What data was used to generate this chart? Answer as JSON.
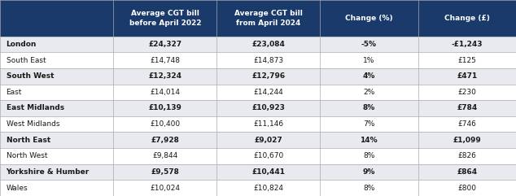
{
  "header_bg": "#1a3a6b",
  "header_text_color": "#ffffff",
  "col_headers": [
    "Average CGT bill\nbefore April 2022",
    "Average CGT bill\nfrom April 2024",
    "Change (%)",
    "Change (£)"
  ],
  "regions": [
    "London",
    "South East",
    "South West",
    "East",
    "East Midlands",
    "West Midlands",
    "North East",
    "North West",
    "Yorkshire & Humber",
    "Wales"
  ],
  "col1": [
    "£24,327",
    "£14,748",
    "£12,324",
    "£14,014",
    "£10,139",
    "£10,400",
    "£7,928",
    "£9,844",
    "£9,578",
    "£10,024"
  ],
  "col2": [
    "£23,084",
    "£14,873",
    "£12,796",
    "£14,244",
    "£10,923",
    "£11,146",
    "£9,027",
    "£10,670",
    "£10,441",
    "£10,824"
  ],
  "col3": [
    "-5%",
    "1%",
    "4%",
    "2%",
    "8%",
    "7%",
    "14%",
    "8%",
    "9%",
    "8%"
  ],
  "col4": [
    "-£1,243",
    "£125",
    "£471",
    "£230",
    "£784",
    "£746",
    "£1,099",
    "£826",
    "£864",
    "£800"
  ],
  "row_colors": [
    "#e8eaf0",
    "#ffffff",
    "#e8eaf0",
    "#ffffff",
    "#e8eaf0",
    "#ffffff",
    "#e8eaf0",
    "#ffffff",
    "#e8eaf0",
    "#ffffff"
  ],
  "bold_rows": [
    0,
    2,
    4,
    6,
    8
  ],
  "figsize": [
    6.34,
    2.41
  ],
  "dpi": 100
}
